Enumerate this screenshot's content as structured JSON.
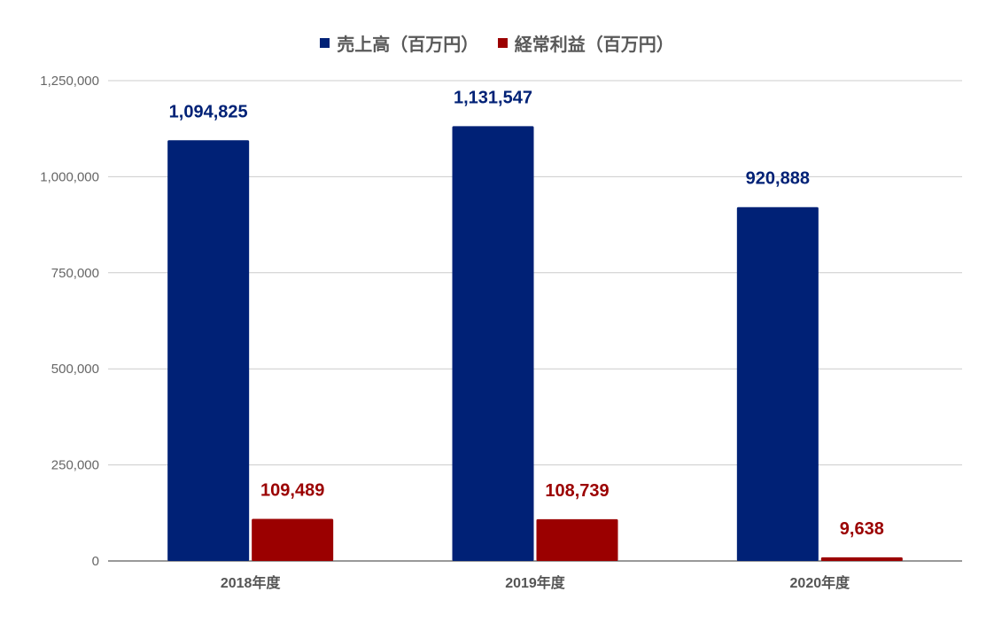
{
  "chart_data": {
    "type": "bar",
    "categories": [
      "2018年度",
      "2019年度",
      "2020年度"
    ],
    "series": [
      {
        "name": "売上高（百万円）",
        "values": [
          1094825,
          1131547,
          920888
        ],
        "labels": [
          "1,094,825",
          "1,131,547",
          "920,888"
        ],
        "color": "#002176"
      },
      {
        "name": "経常利益（百万円）",
        "values": [
          109489,
          108739,
          9638
        ],
        "labels": [
          "109,489",
          "108,739",
          "9,638"
        ],
        "color": "#9b0000"
      }
    ],
    "ylim": [
      0,
      1250000
    ],
    "yticks": [
      0,
      250000,
      500000,
      750000,
      1000000,
      1250000
    ],
    "ytick_labels": [
      "0",
      "250,000",
      "500,000",
      "750,000",
      "1,000,000",
      "1,250,000"
    ],
    "grid": true,
    "legend_position": "top"
  }
}
